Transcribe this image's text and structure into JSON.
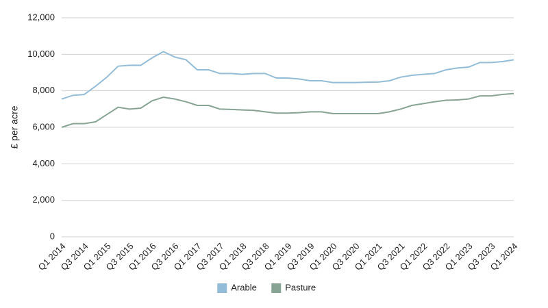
{
  "chart_data": {
    "type": "line",
    "y_label": "£ per acre",
    "categories": [
      "Q1 2014",
      null,
      "Q3 2014",
      null,
      "Q1 2015",
      null,
      "Q3 2015",
      null,
      "Q1 2016",
      null,
      "Q3 2016",
      null,
      "Q1 2017",
      null,
      "Q3 2017",
      null,
      "Q1 2018",
      null,
      "Q3 2018",
      null,
      "Q1 2019",
      null,
      "Q3 2019",
      null,
      "Q1 2020",
      null,
      "Q3 2020",
      null,
      "Q1 2021",
      null,
      "Q3 2021",
      null,
      "Q1 2022",
      null,
      "Q3 2022",
      null,
      "Q1 2023",
      null,
      "Q3 2023",
      null,
      "Q1 2024"
    ],
    "series": [
      {
        "name": "Arable",
        "color": "#92bcd8",
        "values": [
          7550,
          7750,
          7800,
          8250,
          8750,
          9350,
          9400,
          9400,
          9800,
          10150,
          9850,
          9700,
          9150,
          9150,
          8950,
          8950,
          8900,
          8950,
          8950,
          8700,
          8700,
          8650,
          8550,
          8550,
          8450,
          8450,
          8450,
          8470,
          8480,
          8550,
          8750,
          8850,
          8900,
          8950,
          9150,
          9250,
          9300,
          9550,
          9550,
          9600,
          9700
        ]
      },
      {
        "name": "Pasture",
        "color": "#86a393",
        "values": [
          6000,
          6200,
          6200,
          6300,
          6700,
          7100,
          7000,
          7050,
          7450,
          7650,
          7550,
          7400,
          7200,
          7200,
          7000,
          6980,
          6950,
          6930,
          6850,
          6780,
          6780,
          6800,
          6850,
          6850,
          6750,
          6750,
          6750,
          6750,
          6750,
          6850,
          7000,
          7200,
          7300,
          7400,
          7480,
          7500,
          7550,
          7720,
          7720,
          7800,
          7850
        ]
      }
    ],
    "ylim": [
      0,
      12000
    ],
    "yticks": [
      0,
      {
        "value": 2000,
        "label": "2,000"
      },
      {
        "value": 4000,
        "label": "4,000"
      },
      {
        "value": 6000,
        "label": "6,000"
      },
      {
        "value": 8000,
        "label": "8,000"
      },
      {
        "value": 10000,
        "label": "10,000"
      },
      {
        "value": 12000,
        "label": "12,000"
      }
    ],
    "grid": true,
    "legend": "bottom"
  }
}
